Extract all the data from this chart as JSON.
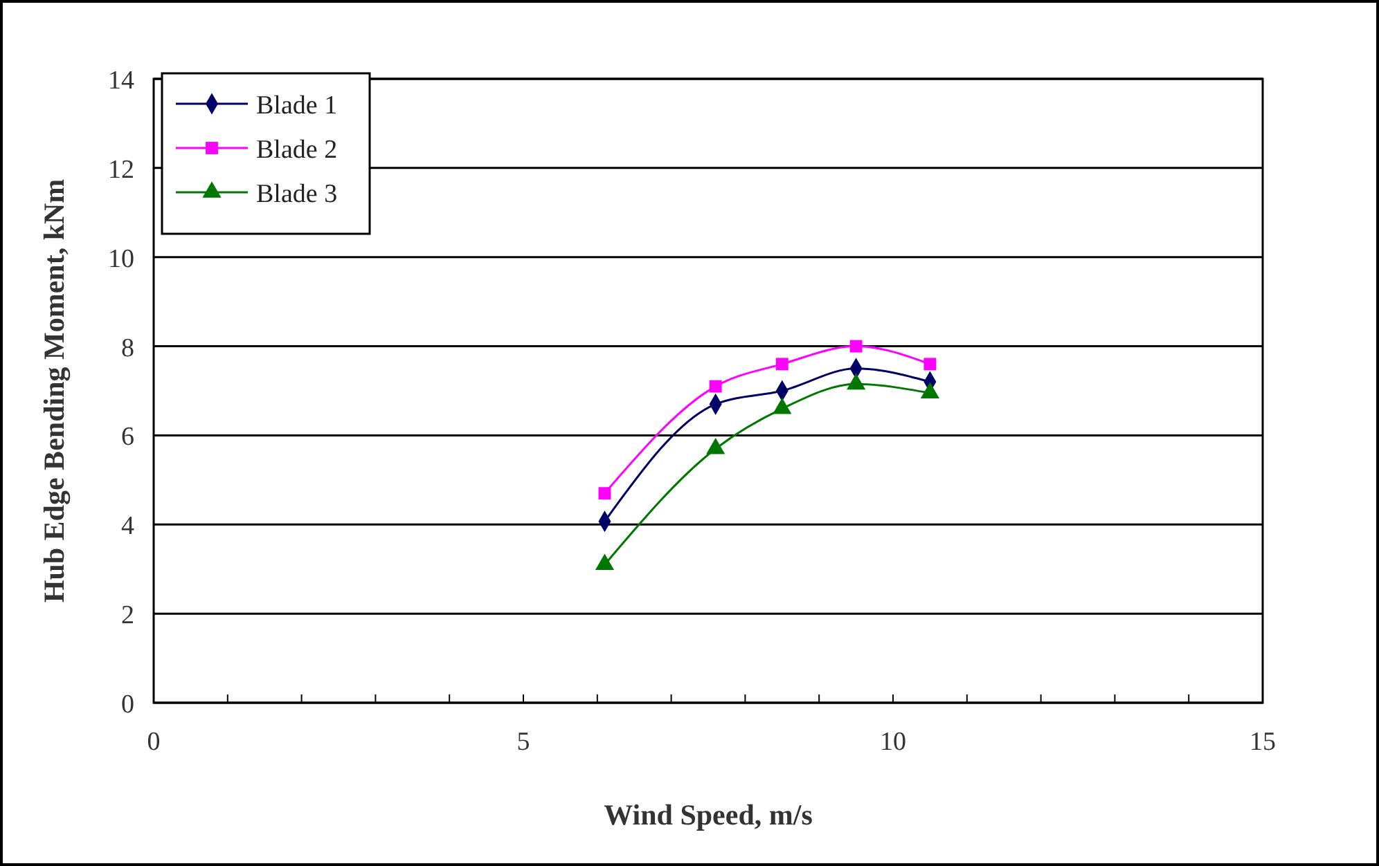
{
  "chart_data": {
    "type": "line",
    "xlabel": "Wind Speed, m/s",
    "ylabel": "Hub Edge Bending Moment, kNm",
    "xlim": [
      0,
      15
    ],
    "ylim": [
      0,
      14
    ],
    "xticks": [
      0,
      {
        "value": 1,
        "label": null
      },
      {
        "value": 2,
        "label": null
      },
      {
        "value": 3,
        "label": null
      },
      {
        "value": 4,
        "label": null
      },
      5,
      {
        "value": 6,
        "label": null
      },
      {
        "value": 7,
        "label": null
      },
      {
        "value": 8,
        "label": null
      },
      {
        "value": 9,
        "label": null
      },
      10,
      {
        "value": 11,
        "label": null
      },
      {
        "value": 12,
        "label": null
      },
      {
        "value": 13,
        "label": null
      },
      {
        "value": 14,
        "label": null
      },
      15
    ],
    "yticks": [
      0,
      2,
      4,
      6,
      8,
      10,
      12,
      14
    ],
    "grid": "y",
    "legend": "top left",
    "line_style": "solid",
    "x": [
      6.1,
      7.6,
      8.5,
      9.5,
      10.5
    ],
    "series": [
      {
        "name": "Blade 1",
        "color": "#000066",
        "marker": "diamond",
        "values": [
          4.07,
          6.7,
          7.0,
          7.5,
          7.2
        ]
      },
      {
        "name": "Blade 2",
        "color": "#ff00ff",
        "marker": "square",
        "values": [
          4.7,
          7.1,
          7.6,
          8.0,
          7.6
        ]
      },
      {
        "name": "Blade 3",
        "color": "#007700",
        "marker": "triangle",
        "values": [
          3.1,
          5.7,
          6.6,
          7.15,
          6.95
        ]
      }
    ]
  }
}
